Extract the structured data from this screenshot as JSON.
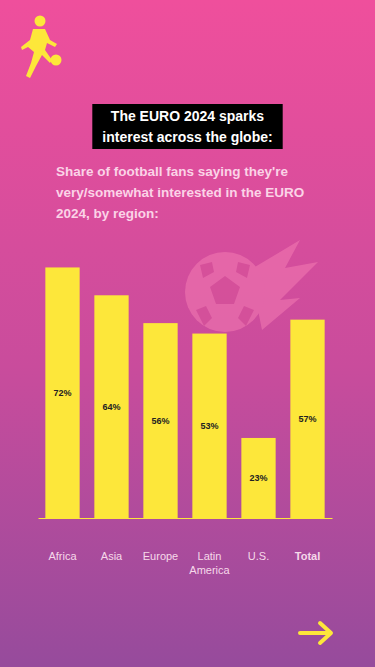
{
  "chart_data": {
    "type": "bar",
    "title": "The EURO 2024 sparks interest across the globe:",
    "subtitle": "Share of football fans saying they're very/somewhat interested in the EURO 2024, by region:",
    "categories": [
      "Africa",
      "Asia",
      "Europe",
      "Latin America",
      "U.S.",
      "Total"
    ],
    "values": [
      72,
      64,
      56,
      53,
      23,
      57
    ],
    "value_labels": [
      "72%",
      "64%",
      "56%",
      "53%",
      "23%",
      "57%"
    ],
    "color": "#fde73a",
    "ylim": [
      0,
      75
    ],
    "data_labels": true,
    "tick_labels": "x"
  }
}
